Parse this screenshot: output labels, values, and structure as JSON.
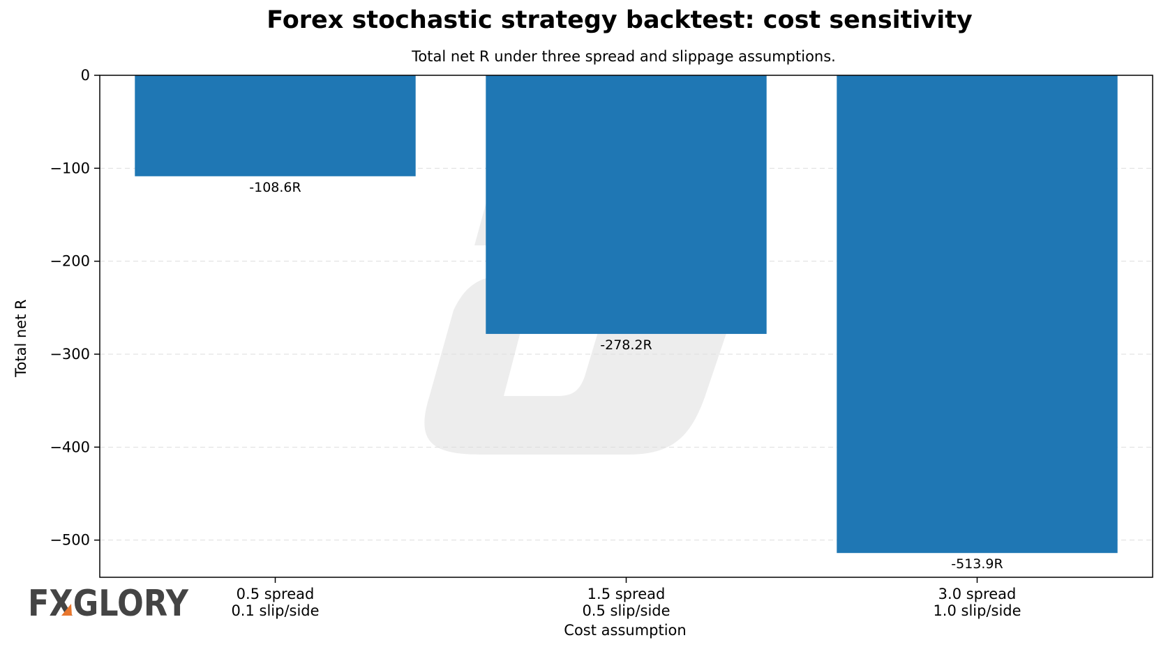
{
  "chart_data": {
    "type": "bar",
    "title": "Forex stochastic strategy backtest: cost sensitivity",
    "subtitle": "Total net R under three spread and slippage assumptions.",
    "xlabel": "Cost assumption",
    "ylabel": "Total net R",
    "categories": [
      [
        "0.5 spread",
        "0.1 slip/side"
      ],
      [
        "1.5 spread",
        "0.5 slip/side"
      ],
      [
        "3.0 spread",
        "1.0 slip/side"
      ]
    ],
    "values": [
      -108.6,
      -278.2,
      -513.9
    ],
    "data_labels": [
      "-108.6R",
      "-278.2R",
      "-513.9R"
    ],
    "ylim": [
      -540,
      0
    ],
    "yticks": [
      0,
      -100,
      -200,
      -300,
      -400,
      -500
    ],
    "ytick_labels": [
      "0",
      "−100",
      "−200",
      "−300",
      "−400",
      "−500"
    ],
    "grid": "horizontal dashed",
    "bar_color": "#1f77b4",
    "grid_color": "#dddddd"
  },
  "branding": {
    "logo_text": "FXGLORY",
    "logo_color": "#444444",
    "logo_accent_color": "#e8772e"
  }
}
